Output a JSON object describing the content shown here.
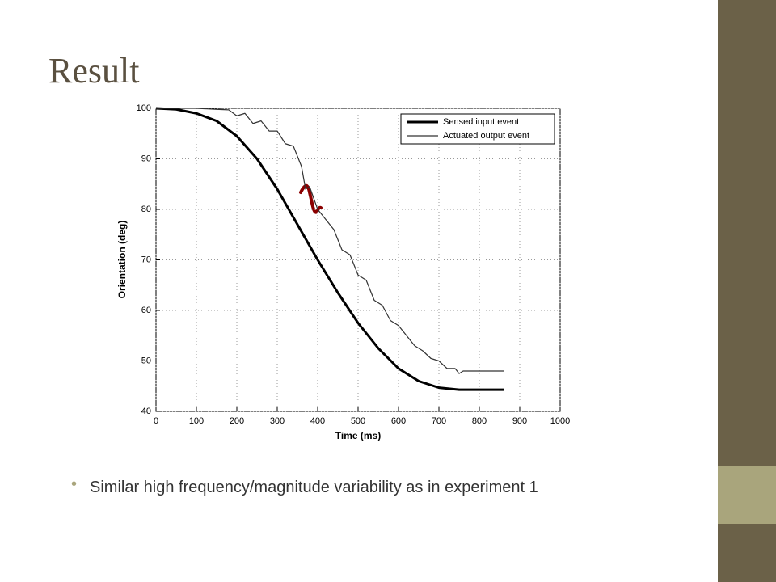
{
  "slide": {
    "title": "Result",
    "bullets": [
      "Similar high frequency/magnitude variability as in experiment 1"
    ]
  },
  "chart_data": {
    "type": "line",
    "xlabel": "Time (ms)",
    "ylabel": "Orientation (deg)",
    "xlim": [
      0,
      1000
    ],
    "xticks": [
      0,
      100,
      200,
      300,
      400,
      500,
      600,
      700,
      800,
      900,
      1000
    ],
    "ylim": [
      40,
      100
    ],
    "yticks": [
      40,
      50,
      60,
      70,
      80,
      90,
      100
    ],
    "grid": true,
    "legend": "top-right",
    "series": [
      {
        "name": "Sensed input event",
        "color": "#000000",
        "x": [
          0,
          50,
          100,
          150,
          200,
          250,
          300,
          350,
          400,
          450,
          500,
          550,
          600,
          650,
          700,
          750,
          800,
          860
        ],
        "values": [
          100,
          99.8,
          99,
          97.5,
          94.5,
          90,
          84,
          77,
          70,
          63.5,
          57.5,
          52.5,
          48.5,
          46,
          44.7,
          44.3,
          44.3,
          44.3
        ]
      },
      {
        "name": "Actuated output event",
        "color": "#333333",
        "x": [
          0,
          50,
          100,
          150,
          180,
          200,
          220,
          240,
          260,
          280,
          300,
          320,
          340,
          360,
          370,
          380,
          400,
          420,
          440,
          460,
          480,
          500,
          520,
          540,
          560,
          580,
          600,
          620,
          640,
          660,
          680,
          700,
          720,
          740,
          750,
          760,
          800,
          860
        ],
        "values": [
          100,
          100,
          100,
          99.8,
          99.7,
          98.5,
          99,
          97,
          97.5,
          95.5,
          95.5,
          93,
          92.5,
          88.5,
          84,
          84.5,
          80,
          78,
          76,
          72,
          71,
          67,
          66,
          62,
          61,
          58,
          57,
          55,
          53,
          52,
          50.5,
          50,
          48.5,
          48.5,
          47.5,
          48,
          48,
          48
        ]
      }
    ]
  }
}
